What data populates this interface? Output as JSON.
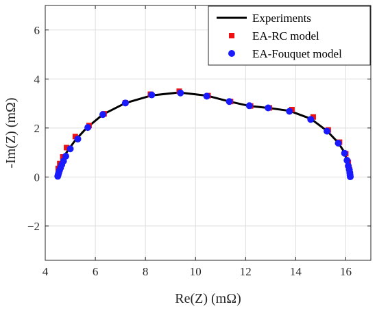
{
  "chart_data": {
    "type": "scatter",
    "title": "",
    "xlabel": "Re(Z) (mΩ)",
    "ylabel": "-Im(Z) (mΩ)",
    "xlim": [
      4,
      17
    ],
    "ylim": [
      -3.4,
      7
    ],
    "x_ticks": [
      4,
      6,
      8,
      10,
      12,
      14,
      16
    ],
    "y_ticks": [
      -2,
      0,
      2,
      4,
      6
    ],
    "grid": true,
    "legend_position": "top-right",
    "series": [
      {
        "name": "Experiments",
        "kind": "line",
        "color": "#000000",
        "points": [
          [
            4.5,
            0.0
          ],
          [
            4.51,
            0.1
          ],
          [
            4.53,
            0.25
          ],
          [
            4.58,
            0.45
          ],
          [
            4.65,
            0.65
          ],
          [
            4.75,
            0.85
          ],
          [
            4.95,
            1.15
          ],
          [
            5.2,
            1.5
          ],
          [
            5.65,
            2.0
          ],
          [
            6.3,
            2.55
          ],
          [
            7.2,
            3.02
          ],
          [
            8.25,
            3.33
          ],
          [
            9.35,
            3.45
          ],
          [
            10.45,
            3.32
          ],
          [
            11.35,
            3.08
          ],
          [
            12.15,
            2.9
          ],
          [
            12.9,
            2.82
          ],
          [
            13.75,
            2.7
          ],
          [
            14.6,
            2.38
          ],
          [
            15.25,
            1.88
          ],
          [
            15.7,
            1.4
          ],
          [
            15.95,
            1.0
          ],
          [
            16.05,
            0.65
          ],
          [
            16.12,
            0.4
          ],
          [
            16.16,
            0.2
          ],
          [
            16.18,
            0.0
          ]
        ]
      },
      {
        "name": "EA-RC model",
        "kind": "square",
        "color": "#ee1111",
        "points": [
          [
            4.52,
            0.35
          ],
          [
            4.58,
            0.55
          ],
          [
            4.7,
            0.82
          ],
          [
            4.85,
            1.2
          ],
          [
            5.2,
            1.65
          ],
          [
            5.75,
            2.1
          ],
          [
            6.35,
            2.58
          ],
          [
            7.2,
            3.03
          ],
          [
            8.2,
            3.38
          ],
          [
            9.35,
            3.5
          ],
          [
            10.5,
            3.32
          ],
          [
            11.4,
            3.08
          ],
          [
            12.2,
            2.9
          ],
          [
            12.95,
            2.82
          ],
          [
            13.85,
            2.75
          ],
          [
            14.7,
            2.45
          ],
          [
            15.3,
            1.92
          ],
          [
            15.75,
            1.42
          ],
          [
            16.0,
            0.95
          ],
          [
            16.1,
            0.6
          ],
          [
            16.15,
            0.3
          ]
        ]
      },
      {
        "name": "EA-Fouquet model",
        "kind": "circle",
        "color": "#1a1aff",
        "points": [
          [
            4.5,
            0.03
          ],
          [
            4.52,
            0.1
          ],
          [
            4.54,
            0.18
          ],
          [
            4.57,
            0.27
          ],
          [
            4.61,
            0.37
          ],
          [
            4.66,
            0.5
          ],
          [
            4.73,
            0.65
          ],
          [
            4.82,
            0.85
          ],
          [
            5.0,
            1.15
          ],
          [
            5.3,
            1.55
          ],
          [
            5.7,
            2.02
          ],
          [
            6.3,
            2.55
          ],
          [
            7.2,
            3.02
          ],
          [
            8.25,
            3.35
          ],
          [
            9.4,
            3.43
          ],
          [
            10.45,
            3.3
          ],
          [
            11.35,
            3.08
          ],
          [
            12.15,
            2.91
          ],
          [
            12.9,
            2.82
          ],
          [
            13.75,
            2.68
          ],
          [
            14.6,
            2.35
          ],
          [
            15.25,
            1.87
          ],
          [
            15.7,
            1.38
          ],
          [
            15.95,
            0.97
          ],
          [
            16.05,
            0.68
          ],
          [
            16.1,
            0.45
          ],
          [
            16.14,
            0.3
          ],
          [
            16.16,
            0.18
          ],
          [
            16.17,
            0.08
          ],
          [
            16.18,
            0.01
          ]
        ]
      }
    ]
  }
}
